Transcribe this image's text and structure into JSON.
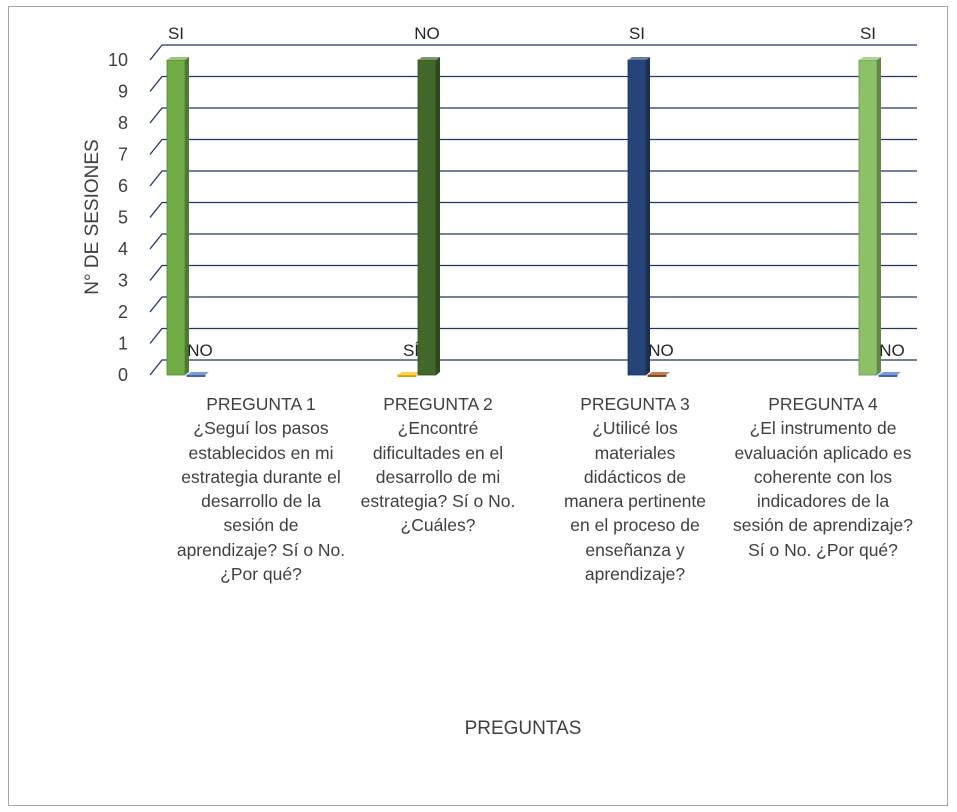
{
  "chart_data": {
    "type": "bar",
    "title": "",
    "xlabel": "PREGUNTAS",
    "ylabel": "N° DE SESIONES",
    "ylim": [
      0,
      10
    ],
    "yticks": [
      0,
      1,
      2,
      3,
      4,
      5,
      6,
      7,
      8,
      9,
      10
    ],
    "grid": true,
    "three_d": true,
    "categories": [
      {
        "title": "PREGUNTA 1",
        "question": "¿Seguí los pasos establecidos en mi estrategia durante el desarrollo de la sesión de aprendizaje? Sí o No. ¿Por qué?"
      },
      {
        "title": "PREGUNTA 2",
        "question": "¿Encontré dificultades en el desarrollo de mi estrategia? Sí o No. ¿Cuáles?"
      },
      {
        "title": "PREGUNTA 3",
        "question": "¿Utilicé los materiales didácticos de manera pertinente en el proceso de enseñanza y aprendizaje?"
      },
      {
        "title": "PREGUNTA 4",
        "question": "¿El instrumento de evaluación aplicado es coherente con los indicadores de la sesión de aprendizaje? Sí o No. ¿Por qué?"
      }
    ],
    "bars": [
      [
        {
          "label": "SI",
          "value": 10,
          "color": "#70ad47"
        },
        {
          "label": "NO",
          "value": 0,
          "color": "#4472c4"
        }
      ],
      [
        {
          "label": "SÍ",
          "value": 0,
          "color": "#ffc000"
        },
        {
          "label": "NO",
          "value": 10,
          "color": "#43682b"
        }
      ],
      [
        {
          "label": "SI",
          "value": 10,
          "color": "#264478"
        },
        {
          "label": "NO",
          "value": 0,
          "color": "#9e480e"
        }
      ],
      [
        {
          "label": "SI",
          "value": 10,
          "color": "#8cc168"
        },
        {
          "label": "NO",
          "value": 0,
          "color": "#4472c4"
        }
      ]
    ],
    "colors": {
      "grid": "#1f3864",
      "axis_text": "#404040"
    }
  }
}
